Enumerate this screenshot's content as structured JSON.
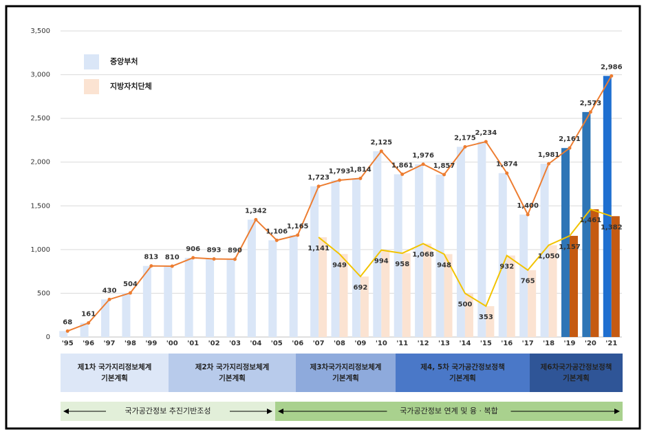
{
  "chart_data": {
    "type": "bar",
    "categories": [
      "'95",
      "'96",
      "'97",
      "'98",
      "'99",
      "'00",
      "'01",
      "'02",
      "'03",
      "'04",
      "'05",
      "'06",
      "'07",
      "'08",
      "'09",
      "'10",
      "'11",
      "'12",
      "'13",
      "'14",
      "'15",
      "'16",
      "'17",
      "'18",
      "'19",
      "'20",
      "'21"
    ],
    "series": [
      {
        "name": "중앙부처",
        "color": "#dae6f7",
        "line_color": "#ed7d31",
        "colors": [
          "#dae6f7",
          "#dae6f7",
          "#dae6f7",
          "#dae6f7",
          "#dae6f7",
          "#dae6f7",
          "#dae6f7",
          "#dae6f7",
          "#dae6f7",
          "#dae6f7",
          "#dae6f7",
          "#dae6f7",
          "#dae6f7",
          "#dae6f7",
          "#dae6f7",
          "#dae6f7",
          "#dae6f7",
          "#dae6f7",
          "#dae6f7",
          "#dae6f7",
          "#dae6f7",
          "#dae6f7",
          "#dae6f7",
          "#dae6f7",
          "#2e75b6",
          "#2e75b6",
          "#1f6fd0"
        ],
        "values": [
          68,
          161,
          430,
          504,
          813,
          810,
          906,
          893,
          890,
          1342,
          1106,
          1165,
          1723,
          1793,
          1814,
          2125,
          1861,
          1976,
          1857,
          2175,
          2234,
          1874,
          1400,
          1981,
          2161,
          2573,
          2986
        ],
        "value_labels": [
          "68",
          "161",
          "430",
          "504",
          "813",
          "810",
          "906",
          "893",
          "890",
          "1,342",
          "1,106",
          "1,165",
          "1,723",
          "1,793",
          "1,814",
          "2,125",
          "1,861",
          "1,976",
          "1,857",
          "2,175",
          "2,234",
          "1,874",
          "1,400",
          "1,981",
          "2,161",
          "2,573",
          "2,986"
        ]
      },
      {
        "name": "지방자치단체",
        "color": "#fbe3d2",
        "line_color": "#f2c300",
        "colors": [
          "#fbe3d2",
          "#fbe3d2",
          "#fbe3d2",
          "#fbe3d2",
          "#fbe3d2",
          "#fbe3d2",
          "#fbe3d2",
          "#fbe3d2",
          "#fbe3d2",
          "#fbe3d2",
          "#fbe3d2",
          "#fbe3d2",
          "#fbe3d2",
          "#fbe3d2",
          "#fbe3d2",
          "#fbe3d2",
          "#fbe3d2",
          "#fbe3d2",
          "#fbe3d2",
          "#fbe3d2",
          "#fbe3d2",
          "#fbe3d2",
          "#fbe3d2",
          "#fbe3d2",
          "#c55a11",
          "#c55a11",
          "#c55a11"
        ],
        "values": [
          null,
          null,
          null,
          null,
          null,
          null,
          null,
          null,
          null,
          null,
          null,
          null,
          1141,
          949,
          692,
          994,
          958,
          1068,
          948,
          500,
          353,
          932,
          765,
          1050,
          1157,
          1461,
          1382
        ],
        "value_labels": [
          null,
          null,
          null,
          null,
          null,
          null,
          null,
          null,
          null,
          null,
          null,
          null,
          "1,141",
          "949",
          "692",
          "994",
          "958",
          "1,068",
          "948",
          "500",
          "353",
          "932",
          "765",
          "1,050",
          "1,157",
          "1,461",
          "1,382"
        ]
      }
    ],
    "ylim": [
      0,
      3500
    ],
    "yticks": [
      0,
      {
        "value": 500,
        "label": "500"
      },
      {
        "value": 1000,
        "label": "1,000"
      },
      {
        "value": 1500,
        "label": "1,500"
      },
      {
        "value": 2000,
        "label": "2,000"
      },
      {
        "value": 2500,
        "label": "2,500"
      },
      {
        "value": 3000,
        "label": "3,000"
      },
      {
        "value": 3500,
        "label": "3,500"
      }
    ],
    "grid": true,
    "legend": "upper left"
  },
  "phases": [
    {
      "lines": [
        "제1차 국가지리정보체계",
        "기본계획"
      ],
      "color": "#dde7f7"
    },
    {
      "lines": [
        "제2차 국가지리정보체계",
        "기본계획"
      ],
      "color": "#b8cbeb"
    },
    {
      "lines": [
        "제3차국가지리정보체계",
        "기본계획"
      ],
      "color": "#8eaadc"
    },
    {
      "lines": [
        "제4, 5차 국가공간정보정책",
        "기본계획"
      ],
      "color": "#4a78c8"
    },
    {
      "lines": [
        "제6차국가공간정보정책",
        "기본계획"
      ],
      "color": "#2f5597"
    }
  ],
  "stages": [
    {
      "label": "국가공간정보 추진기반조성",
      "color": "#e2efd9"
    },
    {
      "label": "국가공간정보 연계 및 융 · 복합",
      "color": "#a9d18e"
    }
  ]
}
